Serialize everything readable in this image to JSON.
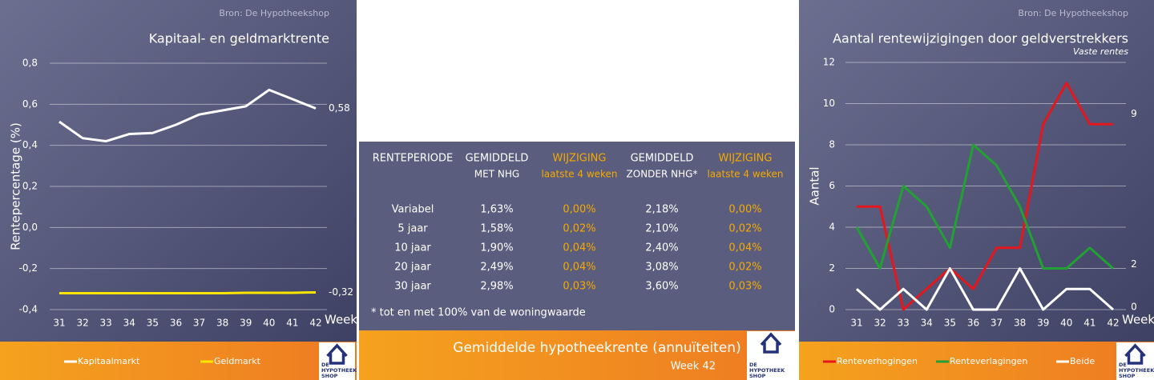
{
  "chart_data": [
    {
      "type": "line",
      "source": "Bron: De Hypotheekshop",
      "title": "Kapitaal- en geldmarktrente",
      "y_label": "Rentepercentage (%)",
      "x_label": "Week",
      "categories": [
        "31",
        "32",
        "33",
        "34",
        "35",
        "36",
        "37",
        "38",
        "39",
        "40",
        "41",
        "42"
      ],
      "series": [
        {
          "name": "Kapitaalmarkt",
          "color": "#ffffff",
          "values": [
            0.515,
            0.435,
            0.42,
            0.455,
            0.46,
            0.5,
            0.55,
            0.57,
            0.59,
            0.67,
            0.625,
            0.58
          ],
          "value_labels": [
            null,
            null,
            null,
            null,
            null,
            null,
            null,
            null,
            null,
            null,
            null,
            "0,58"
          ]
        },
        {
          "name": "Geldmarkt",
          "color": "#ffe600",
          "values": [
            -0.32,
            -0.32,
            -0.32,
            -0.32,
            -0.32,
            -0.32,
            -0.32,
            -0.32,
            -0.318,
            -0.318,
            -0.318,
            -0.316
          ],
          "value_labels": [
            null,
            null,
            null,
            null,
            null,
            null,
            null,
            null,
            null,
            null,
            null,
            "-0,32"
          ]
        }
      ],
      "ylim": [
        -0.4,
        0.8
      ],
      "yticks": [
        {
          "value": -0.4,
          "label": "-0,4"
        },
        {
          "value": -0.2,
          "label": "-0,2"
        },
        {
          "value": 0,
          "label": "0,0"
        },
        {
          "value": 0.2,
          "label": "0,2"
        },
        {
          "value": 0.4,
          "label": "0,4"
        },
        {
          "value": 0.6,
          "label": "0,6"
        },
        {
          "value": 0.8,
          "label": "0,8"
        }
      ],
      "grid": true
    },
    {
      "type": "line",
      "source": "Bron: De Hypotheekshop",
      "title": "Aantal rentewijzigingen door geldverstrekkers",
      "subtitle": "Vaste rentes",
      "y_label": "Aantal",
      "x_label": "Week",
      "categories": [
        "31",
        "32",
        "33",
        "34",
        "35",
        "36",
        "37",
        "38",
        "39",
        "40",
        "41",
        "42"
      ],
      "series": [
        {
          "name": "Renteverhogingen",
          "color": "#e3171d",
          "values": [
            5,
            5,
            0,
            1,
            2,
            1,
            3,
            3,
            9,
            11,
            9,
            9
          ]
        },
        {
          "name": "Renteverlagingen",
          "color": "#23a033",
          "values": [
            4,
            2,
            6,
            5,
            3,
            8,
            7,
            5,
            2,
            2,
            3,
            2
          ]
        },
        {
          "name": "Beide",
          "color": "#ffffff",
          "values": [
            1,
            0,
            1,
            0,
            2,
            0,
            0,
            2,
            0,
            1,
            1,
            0
          ]
        }
      ],
      "ylim": [
        0,
        12
      ],
      "yticks": [
        0,
        2,
        4,
        6,
        8,
        10,
        12
      ],
      "y2lim": [
        0,
        11.4
      ],
      "y2ticks": [
        0,
        2,
        9
      ],
      "grid": true
    }
  ],
  "table": {
    "headers": [
      [
        "RENTEPERIODE"
      ],
      [
        "GEMIDDELD",
        "MET NHG"
      ],
      [
        "WIJZIGING",
        "laatste 4 weken"
      ],
      [
        "GEMIDDELD",
        "ZONDER NHG*"
      ],
      [
        "WIJZIGING",
        "laatste 4 weken"
      ]
    ],
    "rows": [
      [
        "Variabel",
        "1,63%",
        "0,00%",
        "2,18%",
        "0,00%"
      ],
      [
        "5 jaar",
        "1,58%",
        "0,02%",
        "2,10%",
        "0,02%"
      ],
      [
        "10 jaar",
        "1,90%",
        "0,04%",
        "2,40%",
        "0,04%"
      ],
      [
        "20 jaar",
        "2,49%",
        "0,04%",
        "3,08%",
        "0,02%"
      ],
      [
        "30 jaar",
        "2,98%",
        "0,03%",
        "3,60%",
        "0,03%"
      ]
    ],
    "accent_columns": [
      2,
      4
    ],
    "accent_color": "#f5aa00",
    "footnote": "* tot en met 100% van de woningwaarde"
  },
  "footer": {
    "title": "Gemiddelde hypotheekrente (annuïteiten)",
    "week": "Week 42"
  },
  "logo": {
    "lines": [
      "DE",
      "HYPOTHEEK",
      "SHOP"
    ]
  }
}
